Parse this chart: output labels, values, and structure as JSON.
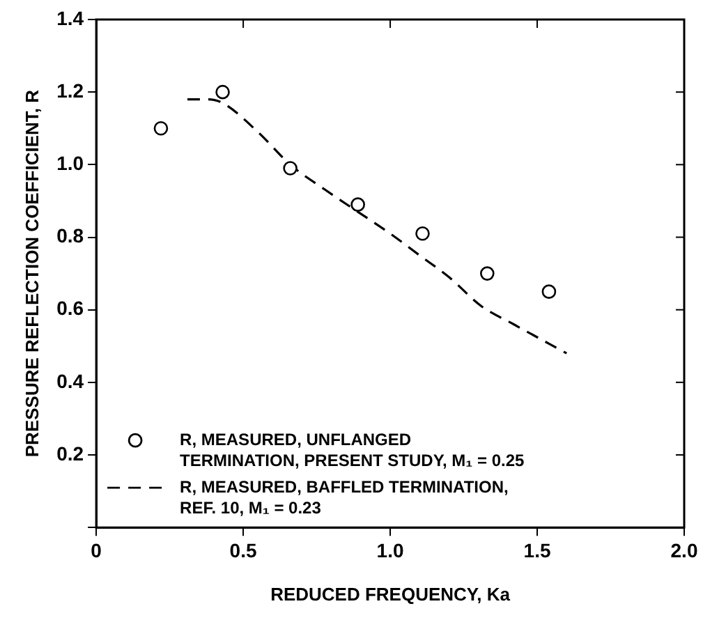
{
  "chart_data": {
    "type": "scatter",
    "xlabel": "REDUCED FREQUENCY, Ka",
    "ylabel": "PRESSURE REFLECTION COEFFICIENT, R",
    "xlim": [
      0,
      2.0
    ],
    "xticks": [
      0,
      0.5,
      {
        "value": 1,
        "label": "1.0"
      },
      1.5,
      {
        "value": 2,
        "label": "2.0"
      }
    ],
    "ylim": [
      0,
      1.4
    ],
    "yticks": [
      {
        "value": 0,
        "label": null
      },
      0.2,
      0.4,
      0.6,
      0.8,
      {
        "value": 1,
        "label": "1.0"
      },
      1.2,
      1.4
    ],
    "grid": false,
    "legend": "bottom left",
    "series": [
      {
        "name": "R, MEASURED, UNFLANGED TERMINATION, PRESENT STUDY, M₁ = 0.25",
        "marker": "circle",
        "color": "#000000",
        "x": [
          0.22,
          0.43,
          0.66,
          0.89,
          1.11,
          1.33,
          1.54
        ],
        "values": [
          1.1,
          1.2,
          0.99,
          0.89,
          0.81,
          0.7,
          0.65
        ]
      },
      {
        "name": "R, MEASURED, BAFFLED TERMINATION, REF. 10, M₁ = 0.23",
        "type": "line",
        "marker": "none",
        "line_style": "dashed",
        "color": "#000000",
        "x": [
          0.31,
          0.38,
          0.43,
          0.55,
          0.66,
          0.78,
          0.89,
          1.0,
          1.1,
          1.2,
          1.31,
          1.42,
          1.6
        ],
        "values": [
          1.18,
          1.18,
          1.17,
          1.09,
          1.0,
          0.93,
          0.87,
          0.81,
          0.75,
          0.69,
          0.61,
          0.56,
          0.48
        ]
      }
    ]
  }
}
